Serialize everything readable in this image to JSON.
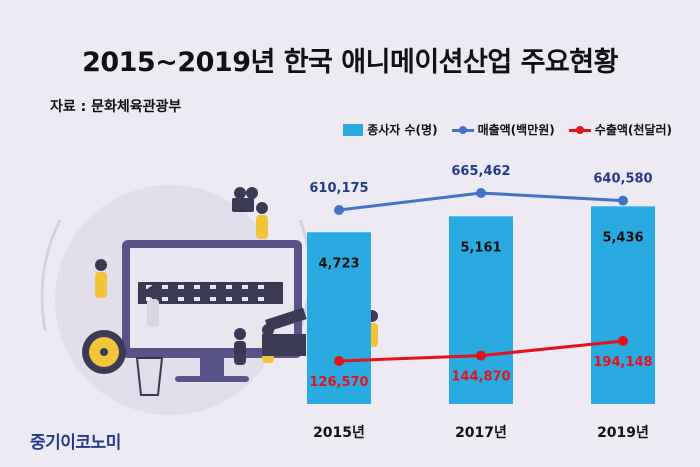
{
  "header": {
    "title": "2015~2019년 한국 애니메이션산업 주요현황",
    "source": "자료 : 문화체육관광부"
  },
  "brand": "중기이코노미",
  "colors": {
    "bars": "#29abe2",
    "revenue": "#4472c4",
    "exports": "#e3121b",
    "background": "#edeaf3"
  },
  "chart_data": {
    "type": "bar",
    "title": "2015~2019년 한국 애니메이션산업 주요현황",
    "categories": [
      "2015년",
      "2017년",
      "2019년"
    ],
    "series": [
      {
        "name": "종사자 수(명)",
        "type": "bar",
        "values": [
          4723,
          5161,
          5436
        ],
        "labels": [
          "4,723",
          "5,161",
          "5,436"
        ]
      },
      {
        "name": "매출액(백만원)",
        "type": "line",
        "values": [
          610175,
          665462,
          640580
        ],
        "labels": [
          "610,175",
          "665,462",
          "640,580"
        ]
      },
      {
        "name": "수출액(천달러)",
        "type": "line",
        "values": [
          126570,
          144870,
          194148
        ],
        "labels": [
          "126,570",
          "144,870",
          "194,148"
        ]
      }
    ],
    "legend_position": "top-right",
    "grid": false
  }
}
